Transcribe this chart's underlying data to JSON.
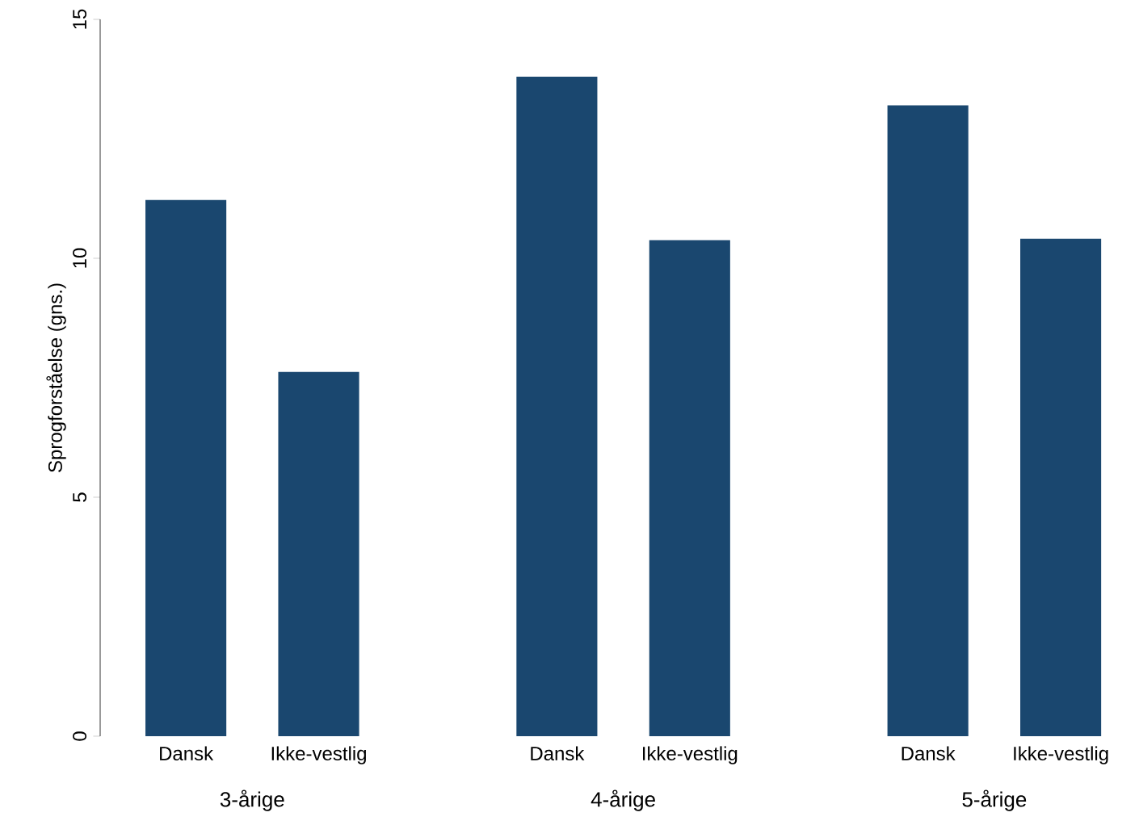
{
  "chart_data": {
    "type": "bar",
    "ylabel": "Sprogforståelse (gns.)",
    "categories": [
      "3-årige",
      "4-årige",
      "5-årige"
    ],
    "series": [
      {
        "name": "Dansk",
        "color": "#1a476f",
        "values": [
          11.22,
          13.8,
          13.2
        ]
      },
      {
        "name": "Ikke-vestlig",
        "color": "#1a476f",
        "values": [
          7.62,
          10.38,
          10.41
        ]
      }
    ],
    "ylim": [
      0,
      15
    ],
    "yticks": [
      0,
      5,
      10,
      15
    ],
    "grid": false,
    "legend": false
  }
}
